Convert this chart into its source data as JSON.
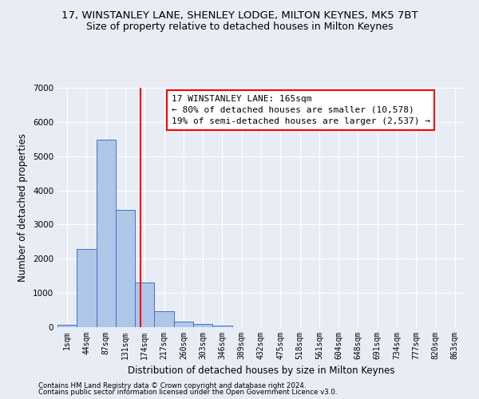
{
  "title": "17, WINSTANLEY LANE, SHENLEY LODGE, MILTON KEYNES, MK5 7BT",
  "subtitle": "Size of property relative to detached houses in Milton Keynes",
  "xlabel": "Distribution of detached houses by size in Milton Keynes",
  "ylabel": "Number of detached properties",
  "footer_line1": "Contains HM Land Registry data © Crown copyright and database right 2024.",
  "footer_line2": "Contains public sector information licensed under the Open Government Licence v3.0.",
  "bar_labels": [
    "1sqm",
    "44sqm",
    "87sqm",
    "131sqm",
    "174sqm",
    "217sqm",
    "260sqm",
    "303sqm",
    "346sqm",
    "389sqm",
    "432sqm",
    "475sqm",
    "518sqm",
    "561sqm",
    "604sqm",
    "648sqm",
    "691sqm",
    "734sqm",
    "777sqm",
    "820sqm",
    "863sqm"
  ],
  "bar_values": [
    80,
    2280,
    5480,
    3440,
    1310,
    460,
    160,
    90,
    55,
    0,
    0,
    0,
    0,
    0,
    0,
    0,
    0,
    0,
    0,
    0,
    0
  ],
  "bar_color": "#aec6e8",
  "bar_edge_color": "#4472c4",
  "vline_x": 3.78,
  "vline_color": "red",
  "annotation_line1": "17 WINSTANLEY LANE: 165sqm",
  "annotation_line2": "← 80% of detached houses are smaller (10,578)",
  "annotation_line3": "19% of semi-detached houses are larger (2,537) →",
  "annotation_box_color": "white",
  "annotation_box_edge": "red",
  "ylim": [
    0,
    7000
  ],
  "yticks": [
    0,
    1000,
    2000,
    3000,
    4000,
    5000,
    6000,
    7000
  ],
  "background_color": "#e8edf5",
  "grid_color": "white",
  "title_fontsize": 9.5,
  "subtitle_fontsize": 9,
  "axis_label_fontsize": 8.5,
  "tick_fontsize": 7,
  "annotation_fontsize": 8,
  "footer_fontsize": 6.2
}
